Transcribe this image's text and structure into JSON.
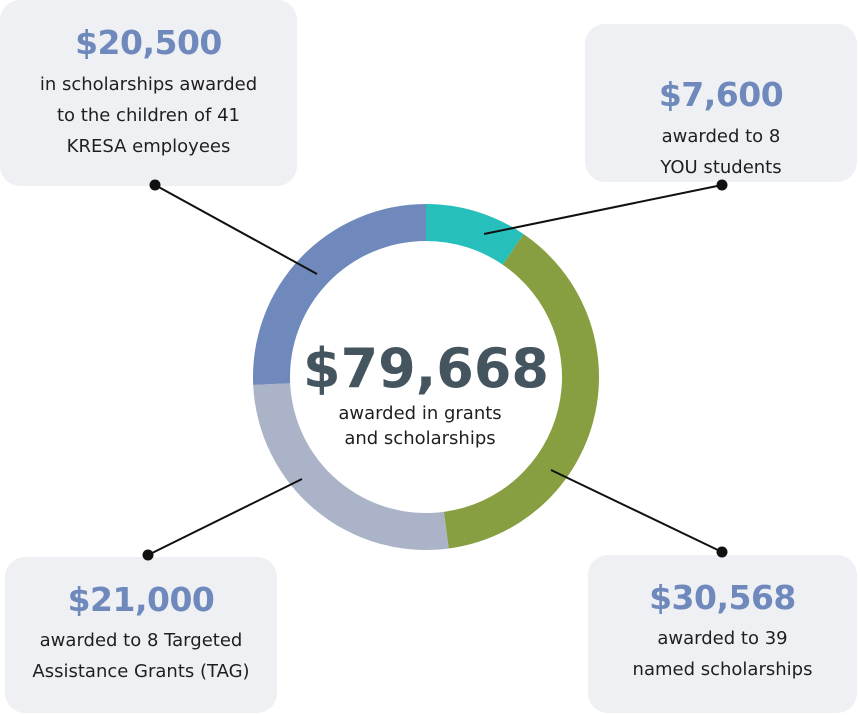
{
  "chart_data": {
    "type": "pie",
    "style": "donut",
    "center": {
      "total": "$79,668",
      "subtitle_lines": [
        "awarded in grants",
        "and scholarships"
      ]
    },
    "slices": [
      {
        "label": "awarded to 8 YOU students",
        "value": 7600,
        "display": "$7,600",
        "color": "#27bfbb"
      },
      {
        "label": "awarded to 39 named scholarships",
        "value": 30568,
        "display": "$30,568",
        "color": "#879f41"
      },
      {
        "label": "awarded to 8 Targeted Assistance Grants (TAG)",
        "value": 21000,
        "display": "$21,000",
        "color": "#abb3c8"
      },
      {
        "label": "in scholarships awarded to the children of 41 KRESA employees",
        "value": 20500,
        "display": "$20,500",
        "color": "#6f89bd"
      }
    ]
  },
  "callouts": {
    "top_left": {
      "amount": "$20,500",
      "text": "in scholarships awarded\nto the children of 41\nKRESA employees"
    },
    "top_right": {
      "amount": "$7,600",
      "text": "awarded to 8\nYOU students"
    },
    "bottom_left": {
      "amount": "$21,000",
      "text": "awarded to 8 Targeted\nAssistance Grants (TAG)"
    },
    "bottom_right": {
      "amount": "$30,568",
      "text": "awarded to 39\nnamed scholarships"
    }
  },
  "colors": {
    "card_bg": "#eef0f3",
    "amount_text": "#6f89bd",
    "center_total": "#455560",
    "connector": "#111111"
  }
}
